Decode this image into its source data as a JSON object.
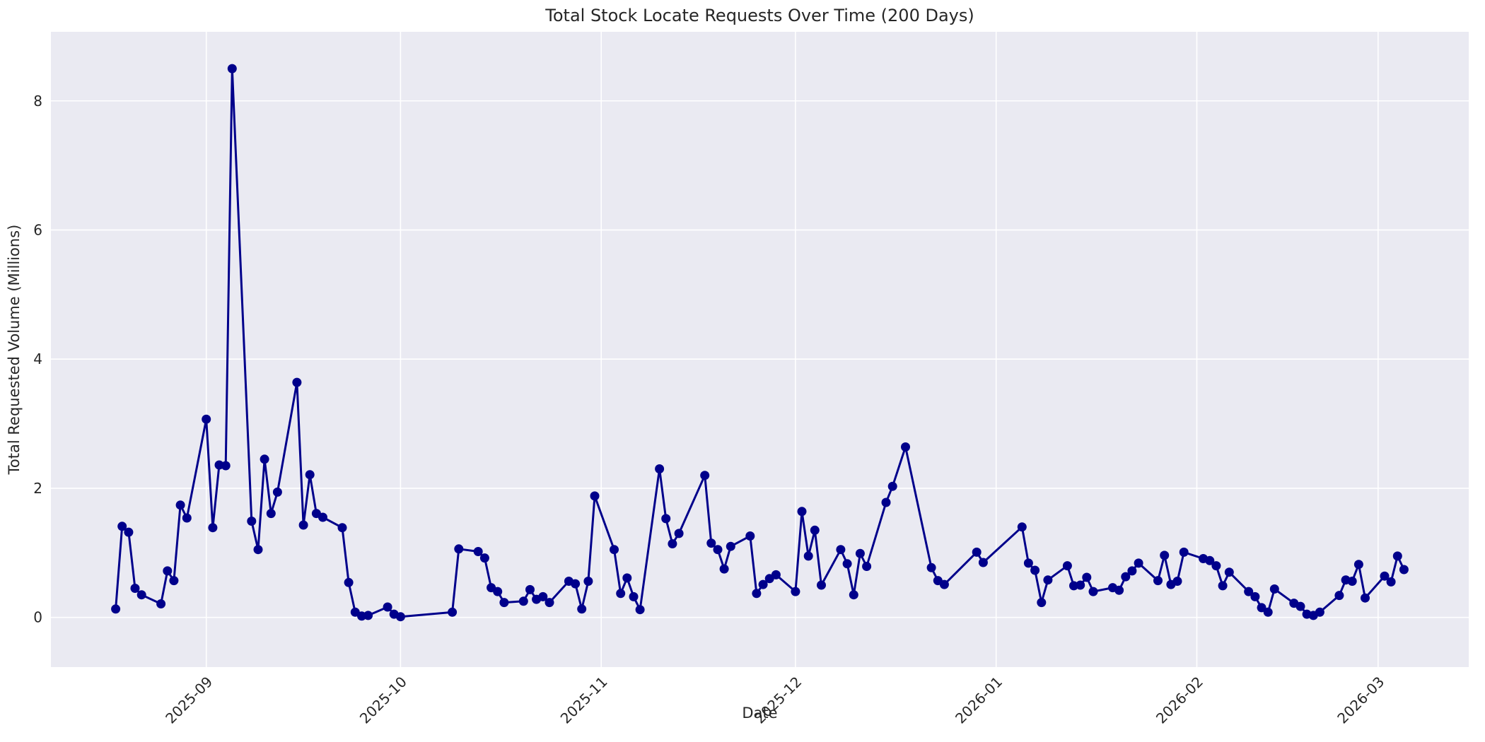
{
  "chart_data": {
    "type": "line",
    "title": "Total Stock Locate Requests Over Time (200 Days)",
    "xlabel": "Date",
    "ylabel": "Total Requested Volume (Millions)",
    "legend_position": "none",
    "grid": true,
    "y_ticks": [
      0,
      2,
      4,
      6,
      8
    ],
    "ylim": [
      -0.77,
      9.07
    ],
    "xlim_dates": [
      "2025-08-08",
      "2026-03-15"
    ],
    "x_ticks": [
      {
        "date": "2025-09-01",
        "label": "2025-09"
      },
      {
        "date": "2025-10-01",
        "label": "2025-10"
      },
      {
        "date": "2025-11-01",
        "label": "2025-11"
      },
      {
        "date": "2025-12-01",
        "label": "2025-12"
      },
      {
        "date": "2026-01-01",
        "label": "2026-01"
      },
      {
        "date": "2026-02-01",
        "label": "2026-02"
      },
      {
        "date": "2026-03-01",
        "label": "2026-03"
      }
    ],
    "styles": {
      "figure_bg": "#ffffff",
      "axes_bg": "#eaeaf2",
      "grid_color": "#ffffff",
      "line_color": "#00008b",
      "marker_color": "#00008b",
      "text_color": "#262626"
    },
    "series": [
      {
        "name": "Total stock locate requests",
        "dates": [
          "2025-08-18",
          "2025-08-19",
          "2025-08-20",
          "2025-08-21",
          "2025-08-22",
          "2025-08-25",
          "2025-08-26",
          "2025-08-27",
          "2025-08-28",
          "2025-08-29",
          "2025-09-01",
          "2025-09-02",
          "2025-09-03",
          "2025-09-04",
          "2025-09-05",
          "2025-09-08",
          "2025-09-09",
          "2025-09-10",
          "2025-09-11",
          "2025-09-12",
          "2025-09-15",
          "2025-09-16",
          "2025-09-17",
          "2025-09-18",
          "2025-09-19",
          "2025-09-22",
          "2025-09-23",
          "2025-09-24",
          "2025-09-25",
          "2025-09-26",
          "2025-09-29",
          "2025-09-30",
          "2025-10-01",
          "2025-10-09",
          "2025-10-10",
          "2025-10-13",
          "2025-10-14",
          "2025-10-15",
          "2025-10-16",
          "2025-10-17",
          "2025-10-20",
          "2025-10-21",
          "2025-10-22",
          "2025-10-23",
          "2025-10-24",
          "2025-10-27",
          "2025-10-28",
          "2025-10-29",
          "2025-10-30",
          "2025-10-31",
          "2025-11-03",
          "2025-11-04",
          "2025-11-05",
          "2025-11-06",
          "2025-11-07",
          "2025-11-10",
          "2025-11-11",
          "2025-11-12",
          "2025-11-13",
          "2025-11-17",
          "2025-11-18",
          "2025-11-19",
          "2025-11-20",
          "2025-11-21",
          "2025-11-24",
          "2025-11-25",
          "2025-11-26",
          "2025-11-27",
          "2025-11-28",
          "2025-12-01",
          "2025-12-02",
          "2025-12-03",
          "2025-12-04",
          "2025-12-05",
          "2025-12-08",
          "2025-12-09",
          "2025-12-10",
          "2025-12-11",
          "2025-12-12",
          "2025-12-15",
          "2025-12-16",
          "2025-12-18",
          "2025-12-22",
          "2025-12-23",
          "2025-12-24",
          "2025-12-29",
          "2025-12-30",
          "2026-01-05",
          "2026-01-06",
          "2026-01-07",
          "2026-01-08",
          "2026-01-09",
          "2026-01-12",
          "2026-01-13",
          "2026-01-14",
          "2026-01-15",
          "2026-01-16",
          "2026-01-19",
          "2026-01-20",
          "2026-01-21",
          "2026-01-22",
          "2026-01-23",
          "2026-01-26",
          "2026-01-27",
          "2026-01-28",
          "2026-01-29",
          "2026-01-30",
          "2026-02-02",
          "2026-02-03",
          "2026-02-04",
          "2026-02-05",
          "2026-02-06",
          "2026-02-09",
          "2026-02-10",
          "2026-02-11",
          "2026-02-12",
          "2026-02-13",
          "2026-02-16",
          "2026-02-17",
          "2026-02-18",
          "2026-02-19",
          "2026-02-20",
          "2026-02-23",
          "2026-02-24",
          "2026-02-25",
          "2026-02-26",
          "2026-02-27",
          "2026-03-02",
          "2026-03-03",
          "2026-03-04",
          "2026-03-05"
        ],
        "values": [
          0.13,
          1.41,
          1.32,
          0.45,
          0.35,
          0.21,
          0.72,
          0.57,
          1.74,
          1.54,
          3.07,
          1.39,
          2.36,
          2.35,
          8.5,
          1.49,
          1.05,
          2.45,
          1.61,
          1.94,
          3.64,
          1.43,
          2.21,
          1.61,
          1.55,
          1.39,
          0.54,
          0.08,
          0.02,
          0.03,
          0.16,
          0.05,
          0.01,
          0.08,
          1.06,
          1.02,
          0.92,
          0.46,
          0.4,
          0.23,
          0.25,
          0.43,
          0.28,
          0.32,
          0.23,
          0.56,
          0.52,
          0.13,
          0.56,
          1.88,
          1.05,
          0.37,
          0.61,
          0.32,
          0.12,
          2.3,
          1.53,
          1.14,
          1.3,
          2.2,
          1.15,
          1.05,
          0.75,
          1.1,
          1.26,
          0.37,
          0.51,
          0.6,
          0.66,
          0.4,
          1.64,
          0.95,
          1.35,
          0.5,
          1.05,
          0.83,
          0.35,
          0.99,
          0.79,
          1.78,
          2.03,
          2.64,
          0.77,
          0.57,
          0.51,
          1.01,
          0.85,
          1.4,
          0.84,
          0.73,
          0.23,
          0.58,
          0.8,
          0.49,
          0.5,
          0.62,
          0.4,
          0.46,
          0.42,
          0.63,
          0.72,
          0.84,
          0.57,
          0.96,
          0.51,
          0.56,
          1.01,
          0.91,
          0.88,
          0.8,
          0.49,
          0.7,
          0.4,
          0.32,
          0.15,
          0.08,
          0.44,
          0.22,
          0.17,
          0.05,
          0.03,
          0.08,
          0.34,
          0.58,
          0.56,
          0.82,
          0.3,
          0.64,
          0.55,
          0.95,
          0.74
        ]
      }
    ]
  }
}
